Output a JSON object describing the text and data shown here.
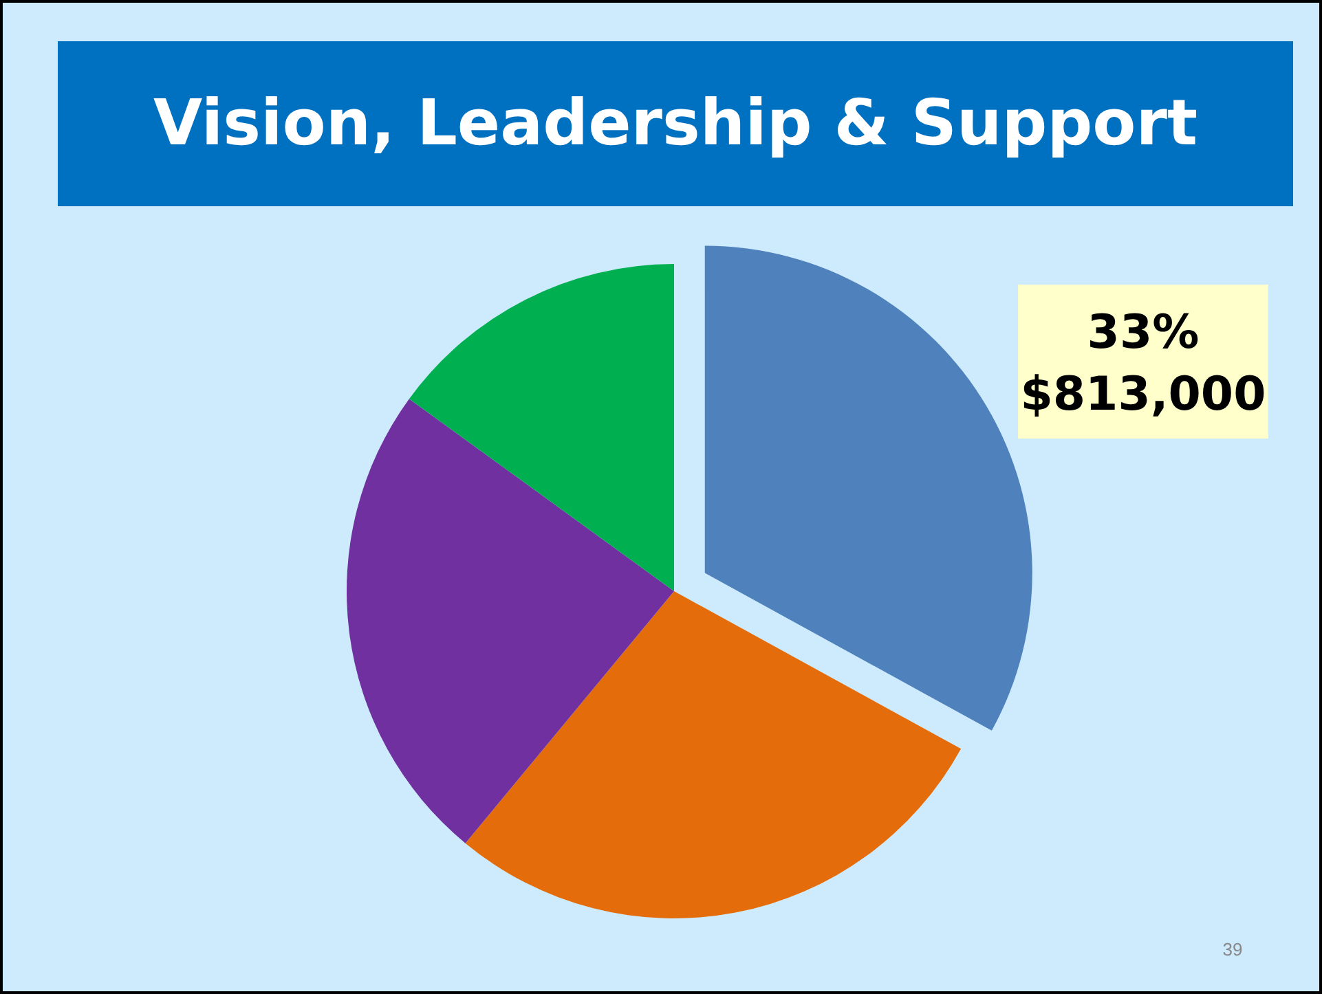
{
  "chart_data": {
    "type": "pie",
    "title": "Vision, Leadership & Support",
    "categories": [
      null,
      null,
      null,
      null
    ],
    "values": [
      33,
      28,
      24,
      15
    ],
    "colors": [
      "#4f81bd",
      "#e46c0a",
      "#7030a0",
      "#00b050"
    ],
    "value_labels": [
      "33%\n$813,000",
      null,
      null,
      null
    ],
    "annotations": [
      "39"
    ]
  }
}
